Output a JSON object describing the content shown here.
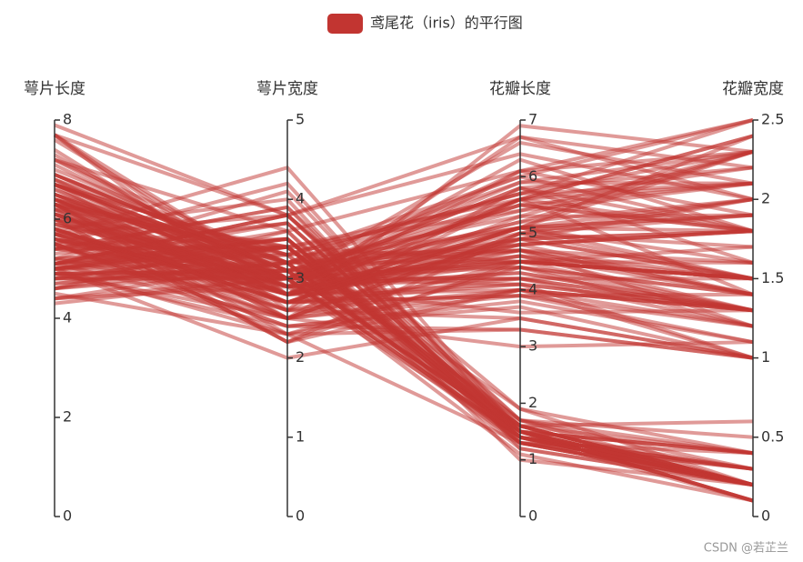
{
  "chart_data": {
    "type": "parallel",
    "axes": [
      {
        "name": "萼片长度",
        "ylim": [
          0,
          8
        ],
        "yticks": [
          0,
          2,
          4,
          6,
          8
        ]
      },
      {
        "name": "萼片宽度",
        "ylim": [
          0,
          5
        ],
        "yticks": [
          0,
          1,
          2,
          3,
          4,
          5
        ]
      },
      {
        "name": "花瓣长度",
        "ylim": [
          0,
          7
        ],
        "yticks": [
          0,
          1,
          2,
          3,
          4,
          5,
          6,
          7
        ]
      },
      {
        "name": "花瓣宽度",
        "ylim": [
          0,
          2.5
        ],
        "yticks": [
          0,
          0.5,
          1,
          1.5,
          2,
          2.5
        ]
      }
    ],
    "series": [
      {
        "name": "鸢尾花（iris）的平行图",
        "color": "#c23531",
        "values": [
          [
            5.1,
            3.5,
            1.4,
            0.2
          ],
          [
            4.9,
            3.0,
            1.4,
            0.2
          ],
          [
            4.7,
            3.2,
            1.3,
            0.2
          ],
          [
            4.6,
            3.1,
            1.5,
            0.2
          ],
          [
            5.0,
            3.6,
            1.4,
            0.2
          ],
          [
            5.4,
            3.9,
            1.7,
            0.4
          ],
          [
            4.6,
            3.4,
            1.4,
            0.3
          ],
          [
            5.0,
            3.4,
            1.5,
            0.2
          ],
          [
            4.4,
            2.9,
            1.4,
            0.2
          ],
          [
            4.9,
            3.1,
            1.5,
            0.1
          ],
          [
            5.4,
            3.7,
            1.5,
            0.2
          ],
          [
            4.8,
            3.4,
            1.6,
            0.2
          ],
          [
            4.8,
            3.0,
            1.4,
            0.1
          ],
          [
            4.3,
            3.0,
            1.1,
            0.1
          ],
          [
            5.8,
            4.0,
            1.2,
            0.2
          ],
          [
            5.7,
            4.4,
            1.5,
            0.4
          ],
          [
            5.4,
            3.9,
            1.3,
            0.4
          ],
          [
            5.1,
            3.5,
            1.4,
            0.3
          ],
          [
            5.7,
            3.8,
            1.7,
            0.3
          ],
          [
            5.1,
            3.8,
            1.5,
            0.3
          ],
          [
            5.4,
            3.4,
            1.7,
            0.2
          ],
          [
            5.1,
            3.7,
            1.5,
            0.4
          ],
          [
            4.6,
            3.6,
            1.0,
            0.2
          ],
          [
            5.1,
            3.3,
            1.7,
            0.5
          ],
          [
            4.8,
            3.4,
            1.9,
            0.2
          ],
          [
            5.0,
            3.0,
            1.6,
            0.2
          ],
          [
            5.0,
            3.4,
            1.6,
            0.4
          ],
          [
            5.2,
            3.5,
            1.5,
            0.2
          ],
          [
            5.2,
            3.4,
            1.4,
            0.2
          ],
          [
            4.7,
            3.2,
            1.6,
            0.2
          ],
          [
            4.8,
            3.1,
            1.6,
            0.2
          ],
          [
            5.4,
            3.4,
            1.5,
            0.4
          ],
          [
            5.2,
            4.1,
            1.5,
            0.1
          ],
          [
            5.5,
            4.2,
            1.4,
            0.2
          ],
          [
            4.9,
            3.1,
            1.5,
            0.1
          ],
          [
            5.0,
            3.2,
            1.2,
            0.2
          ],
          [
            5.5,
            3.5,
            1.3,
            0.2
          ],
          [
            4.9,
            3.1,
            1.5,
            0.1
          ],
          [
            4.4,
            3.0,
            1.3,
            0.2
          ],
          [
            5.1,
            3.4,
            1.5,
            0.2
          ],
          [
            5.0,
            3.5,
            1.3,
            0.3
          ],
          [
            4.5,
            2.3,
            1.3,
            0.3
          ],
          [
            4.4,
            3.2,
            1.3,
            0.2
          ],
          [
            5.0,
            3.5,
            1.6,
            0.6
          ],
          [
            5.1,
            3.8,
            1.9,
            0.4
          ],
          [
            4.8,
            3.0,
            1.4,
            0.3
          ],
          [
            5.1,
            3.8,
            1.6,
            0.2
          ],
          [
            4.6,
            3.2,
            1.4,
            0.2
          ],
          [
            5.3,
            3.7,
            1.5,
            0.2
          ],
          [
            5.0,
            3.3,
            1.4,
            0.2
          ],
          [
            7.0,
            3.2,
            4.7,
            1.4
          ],
          [
            6.4,
            3.2,
            4.5,
            1.5
          ],
          [
            6.9,
            3.1,
            4.9,
            1.5
          ],
          [
            5.5,
            2.3,
            4.0,
            1.3
          ],
          [
            6.5,
            2.8,
            4.6,
            1.5
          ],
          [
            5.7,
            2.8,
            4.5,
            1.3
          ],
          [
            6.3,
            3.3,
            4.7,
            1.6
          ],
          [
            4.9,
            2.4,
            3.3,
            1.0
          ],
          [
            6.6,
            2.9,
            4.6,
            1.3
          ],
          [
            5.2,
            2.7,
            3.9,
            1.4
          ],
          [
            5.0,
            2.0,
            3.5,
            1.0
          ],
          [
            5.9,
            3.0,
            4.2,
            1.5
          ],
          [
            6.0,
            2.2,
            4.0,
            1.0
          ],
          [
            6.1,
            2.9,
            4.7,
            1.4
          ],
          [
            5.6,
            2.9,
            3.6,
            1.3
          ],
          [
            6.7,
            3.1,
            4.4,
            1.4
          ],
          [
            5.6,
            3.0,
            4.5,
            1.5
          ],
          [
            5.8,
            2.7,
            4.1,
            1.0
          ],
          [
            6.2,
            2.2,
            4.5,
            1.5
          ],
          [
            5.6,
            2.5,
            3.9,
            1.1
          ],
          [
            5.9,
            3.2,
            4.8,
            1.8
          ],
          [
            6.1,
            2.8,
            4.0,
            1.3
          ],
          [
            6.3,
            2.5,
            4.9,
            1.5
          ],
          [
            6.1,
            2.8,
            4.7,
            1.2
          ],
          [
            6.4,
            2.9,
            4.3,
            1.3
          ],
          [
            6.6,
            3.0,
            4.4,
            1.4
          ],
          [
            6.8,
            2.8,
            4.8,
            1.4
          ],
          [
            6.7,
            3.0,
            5.0,
            1.7
          ],
          [
            6.0,
            2.9,
            4.5,
            1.5
          ],
          [
            5.7,
            2.6,
            3.5,
            1.0
          ],
          [
            5.5,
            2.4,
            3.8,
            1.1
          ],
          [
            5.5,
            2.4,
            3.7,
            1.0
          ],
          [
            5.8,
            2.7,
            3.9,
            1.2
          ],
          [
            6.0,
            2.7,
            5.1,
            1.6
          ],
          [
            5.4,
            3.0,
            4.5,
            1.5
          ],
          [
            6.0,
            3.4,
            4.5,
            1.6
          ],
          [
            6.7,
            3.1,
            4.7,
            1.5
          ],
          [
            6.3,
            2.3,
            4.4,
            1.3
          ],
          [
            5.6,
            3.0,
            4.1,
            1.3
          ],
          [
            5.5,
            2.5,
            4.0,
            1.3
          ],
          [
            5.5,
            2.6,
            4.4,
            1.2
          ],
          [
            6.1,
            3.0,
            4.6,
            1.4
          ],
          [
            5.8,
            2.6,
            4.0,
            1.2
          ],
          [
            5.0,
            2.3,
            3.3,
            1.0
          ],
          [
            5.6,
            2.7,
            4.2,
            1.3
          ],
          [
            5.7,
            3.0,
            4.2,
            1.2
          ],
          [
            5.7,
            2.9,
            4.2,
            1.3
          ],
          [
            6.2,
            2.9,
            4.3,
            1.3
          ],
          [
            5.1,
            2.5,
            3.0,
            1.1
          ],
          [
            5.7,
            2.8,
            4.1,
            1.3
          ],
          [
            6.3,
            3.3,
            6.0,
            2.5
          ],
          [
            5.8,
            2.7,
            5.1,
            1.9
          ],
          [
            7.1,
            3.0,
            5.9,
            2.1
          ],
          [
            6.3,
            2.9,
            5.6,
            1.8
          ],
          [
            6.5,
            3.0,
            5.8,
            2.2
          ],
          [
            7.6,
            3.0,
            6.6,
            2.1
          ],
          [
            4.9,
            2.5,
            4.5,
            1.7
          ],
          [
            7.3,
            2.9,
            6.3,
            1.8
          ],
          [
            6.7,
            2.5,
            5.8,
            1.8
          ],
          [
            7.2,
            3.6,
            6.1,
            2.5
          ],
          [
            6.5,
            3.2,
            5.1,
            2.0
          ],
          [
            6.4,
            2.7,
            5.3,
            1.9
          ],
          [
            6.8,
            3.0,
            5.5,
            2.1
          ],
          [
            5.7,
            2.5,
            5.0,
            2.0
          ],
          [
            5.8,
            2.8,
            5.1,
            2.4
          ],
          [
            6.4,
            3.2,
            5.3,
            2.3
          ],
          [
            6.5,
            3.0,
            5.5,
            1.8
          ],
          [
            7.7,
            3.8,
            6.7,
            2.2
          ],
          [
            7.7,
            2.6,
            6.9,
            2.3
          ],
          [
            6.0,
            2.2,
            5.0,
            1.5
          ],
          [
            6.9,
            3.2,
            5.7,
            2.3
          ],
          [
            5.6,
            2.8,
            4.9,
            2.0
          ],
          [
            7.7,
            2.8,
            6.7,
            2.0
          ],
          [
            6.3,
            2.7,
            4.9,
            1.8
          ],
          [
            6.7,
            3.3,
            5.7,
            2.1
          ],
          [
            7.2,
            3.2,
            6.0,
            1.8
          ],
          [
            6.2,
            2.8,
            4.8,
            1.8
          ],
          [
            6.1,
            3.0,
            4.9,
            1.8
          ],
          [
            6.4,
            2.8,
            5.6,
            2.1
          ],
          [
            7.2,
            3.0,
            5.8,
            1.6
          ],
          [
            7.4,
            2.8,
            6.1,
            1.9
          ],
          [
            7.9,
            3.8,
            6.4,
            2.0
          ],
          [
            6.4,
            2.8,
            5.6,
            2.2
          ],
          [
            6.3,
            2.8,
            5.1,
            1.5
          ],
          [
            6.1,
            2.6,
            5.6,
            1.4
          ],
          [
            7.7,
            3.0,
            6.1,
            2.3
          ],
          [
            6.3,
            3.4,
            5.6,
            2.4
          ],
          [
            6.4,
            3.1,
            5.5,
            1.8
          ],
          [
            6.0,
            3.0,
            4.8,
            1.8
          ],
          [
            6.9,
            3.1,
            5.4,
            2.1
          ],
          [
            6.7,
            3.1,
            5.6,
            2.4
          ],
          [
            6.9,
            3.1,
            5.1,
            2.3
          ],
          [
            5.8,
            2.7,
            5.1,
            1.9
          ],
          [
            6.8,
            3.2,
            5.9,
            2.3
          ],
          [
            6.7,
            3.3,
            5.7,
            2.5
          ],
          [
            6.7,
            3.0,
            5.2,
            2.3
          ],
          [
            6.3,
            2.5,
            5.0,
            1.9
          ],
          [
            6.5,
            3.0,
            5.2,
            2.0
          ],
          [
            6.2,
            3.4,
            5.4,
            2.3
          ],
          [
            5.9,
            3.0,
            5.1,
            1.8
          ]
        ]
      }
    ],
    "watermark": "CSDN @若芷兰"
  }
}
